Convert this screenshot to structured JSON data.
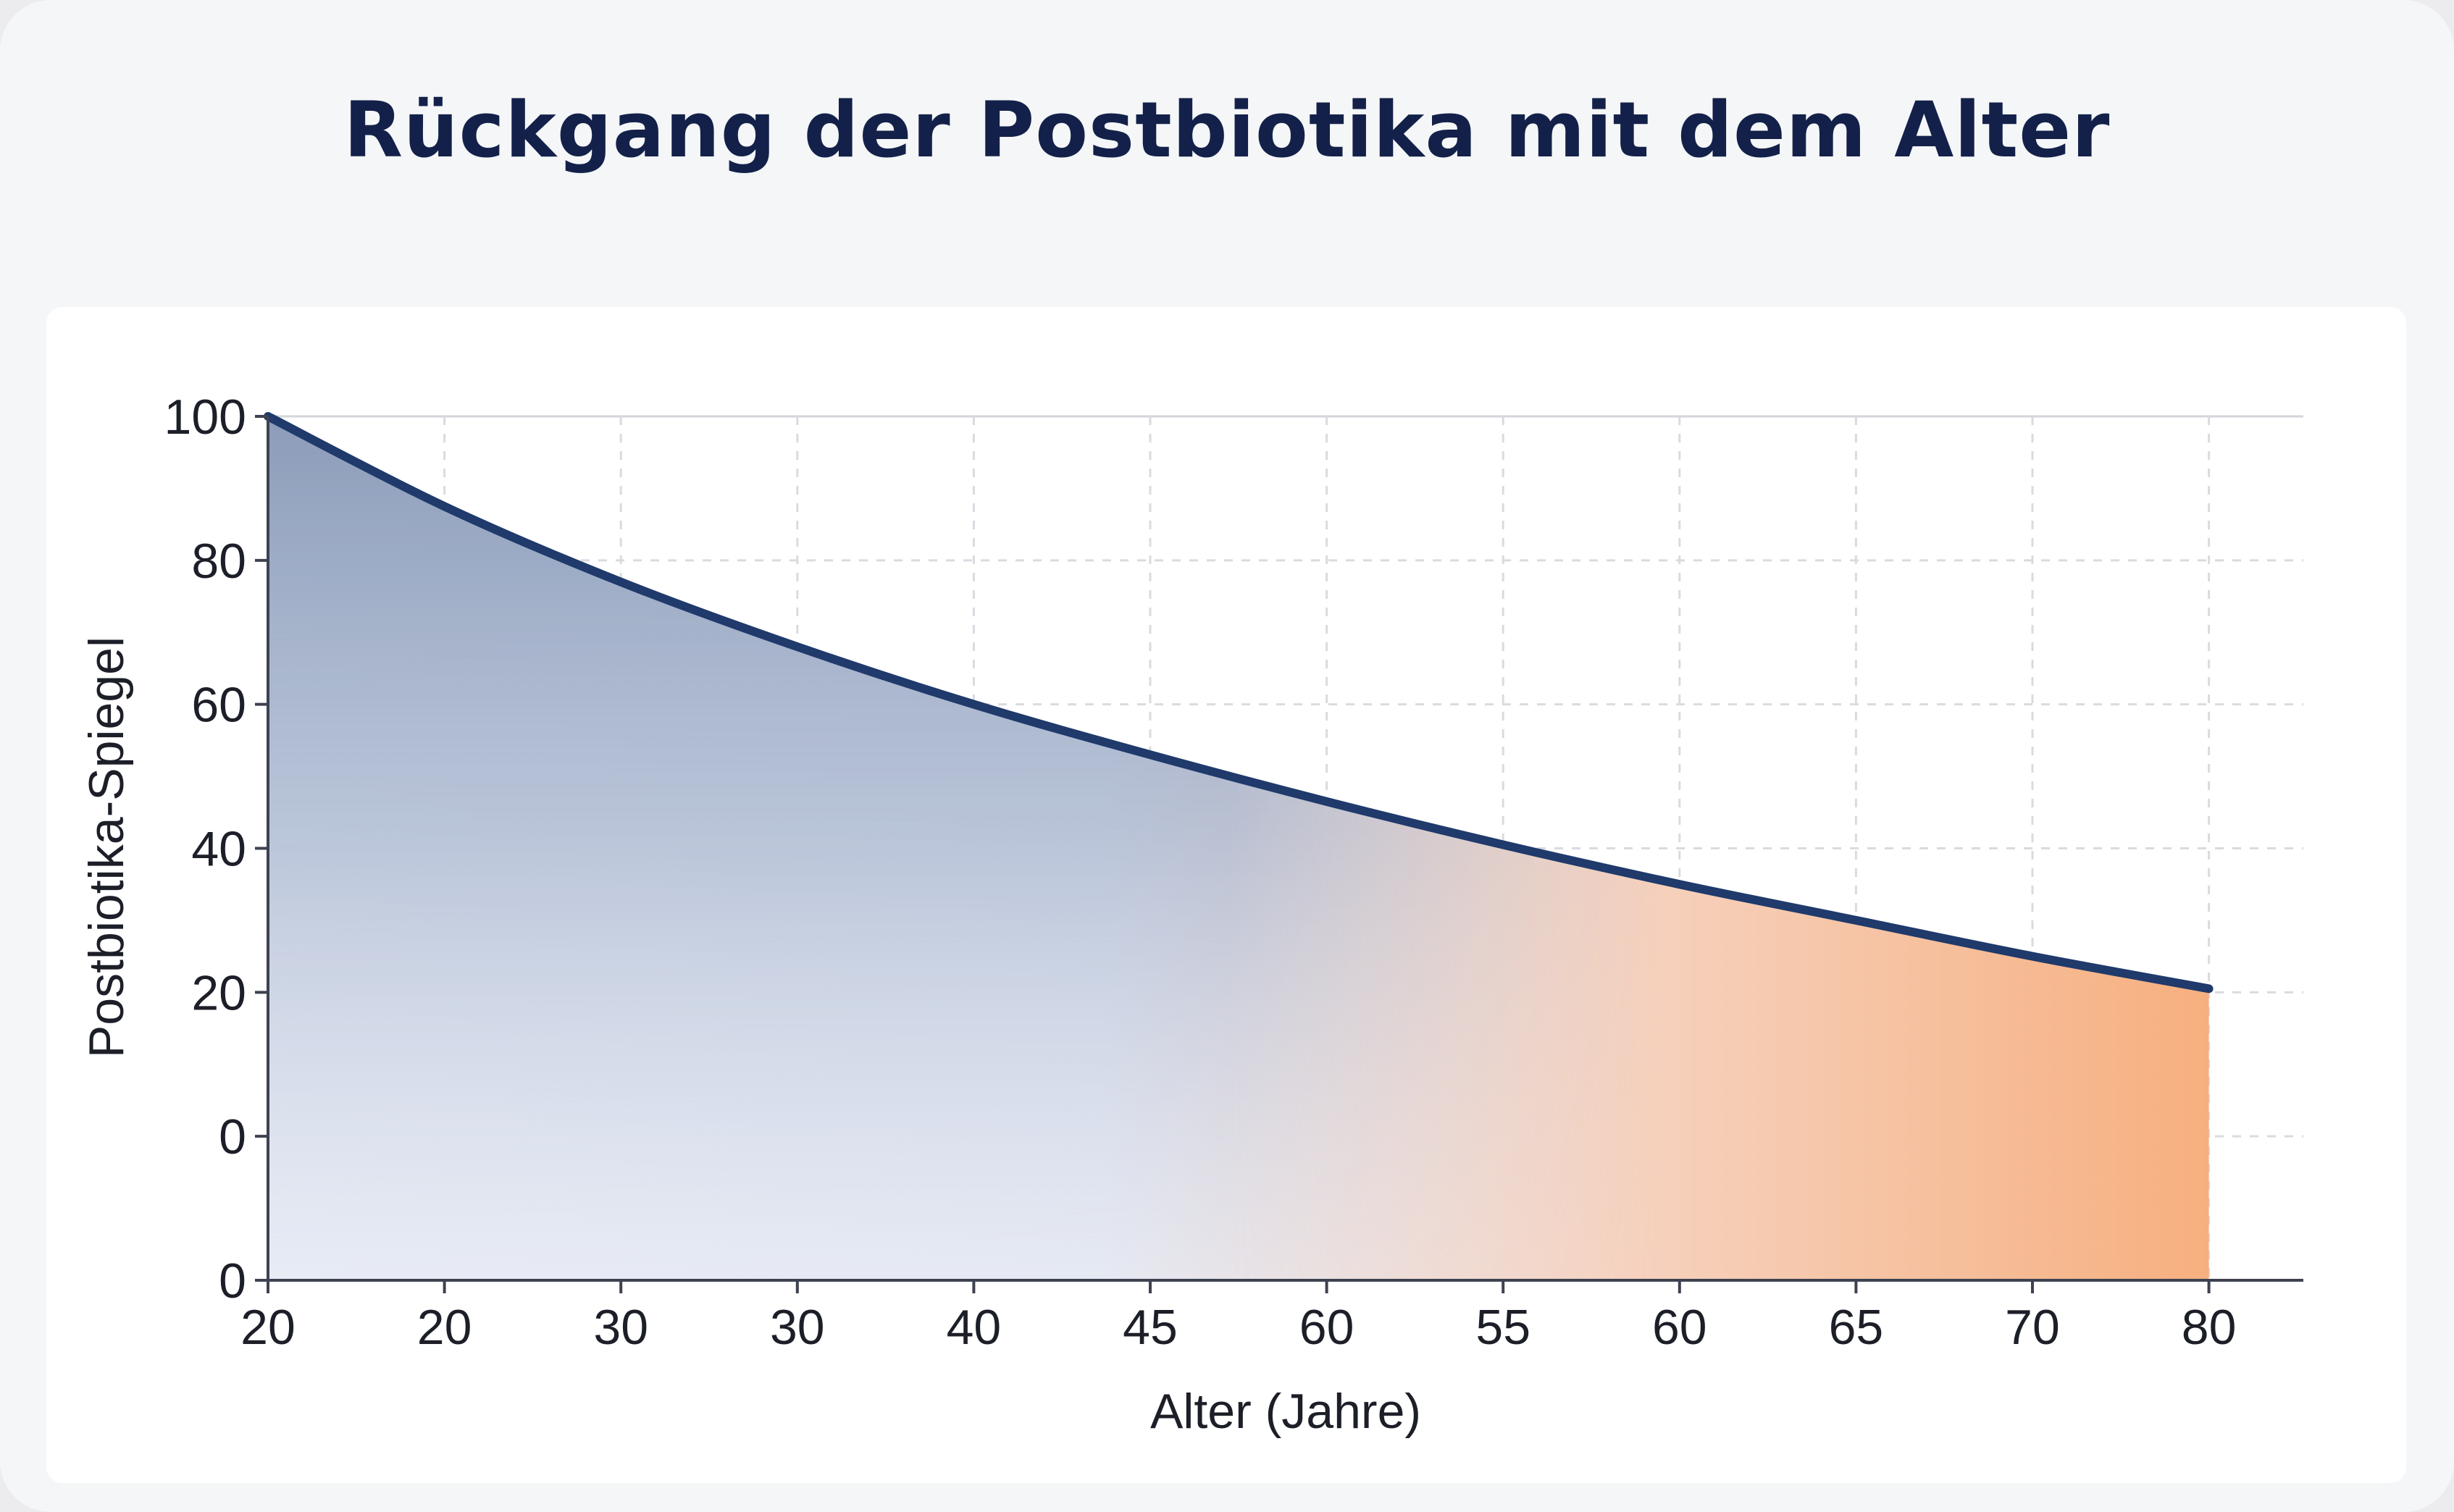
{
  "title": "Rückgang der Postbiotika mit dem Alter",
  "chart_data": {
    "type": "area",
    "title": "Rückgang der Postbiotika mit dem Alter",
    "xlabel": "Alter (Jahre)",
    "ylabel": "Postbiotika-Spiegel",
    "x_tick_labels": [
      "20",
      "20",
      "30",
      "30",
      "40",
      "45",
      "60",
      "55",
      "60",
      "65",
      "70",
      "80"
    ],
    "y_tick_labels": [
      "0",
      "0",
      "20",
      "40",
      "60",
      "80",
      "100"
    ],
    "ylim": [
      0,
      100
    ],
    "grid": true,
    "fill": "gradient from dark blue (left, top) to orange (right)",
    "series": [
      {
        "values_at_ticks": [
          100,
          87.5,
          77,
          68,
          60,
          53,
          46.5,
          40.5,
          35,
          30,
          25,
          20.5
        ]
      }
    ]
  },
  "colors": {
    "line": "#1f3a6b",
    "fill_start": "#3d5580",
    "fill_end": "#f59a5a",
    "title": "#13214a"
  }
}
